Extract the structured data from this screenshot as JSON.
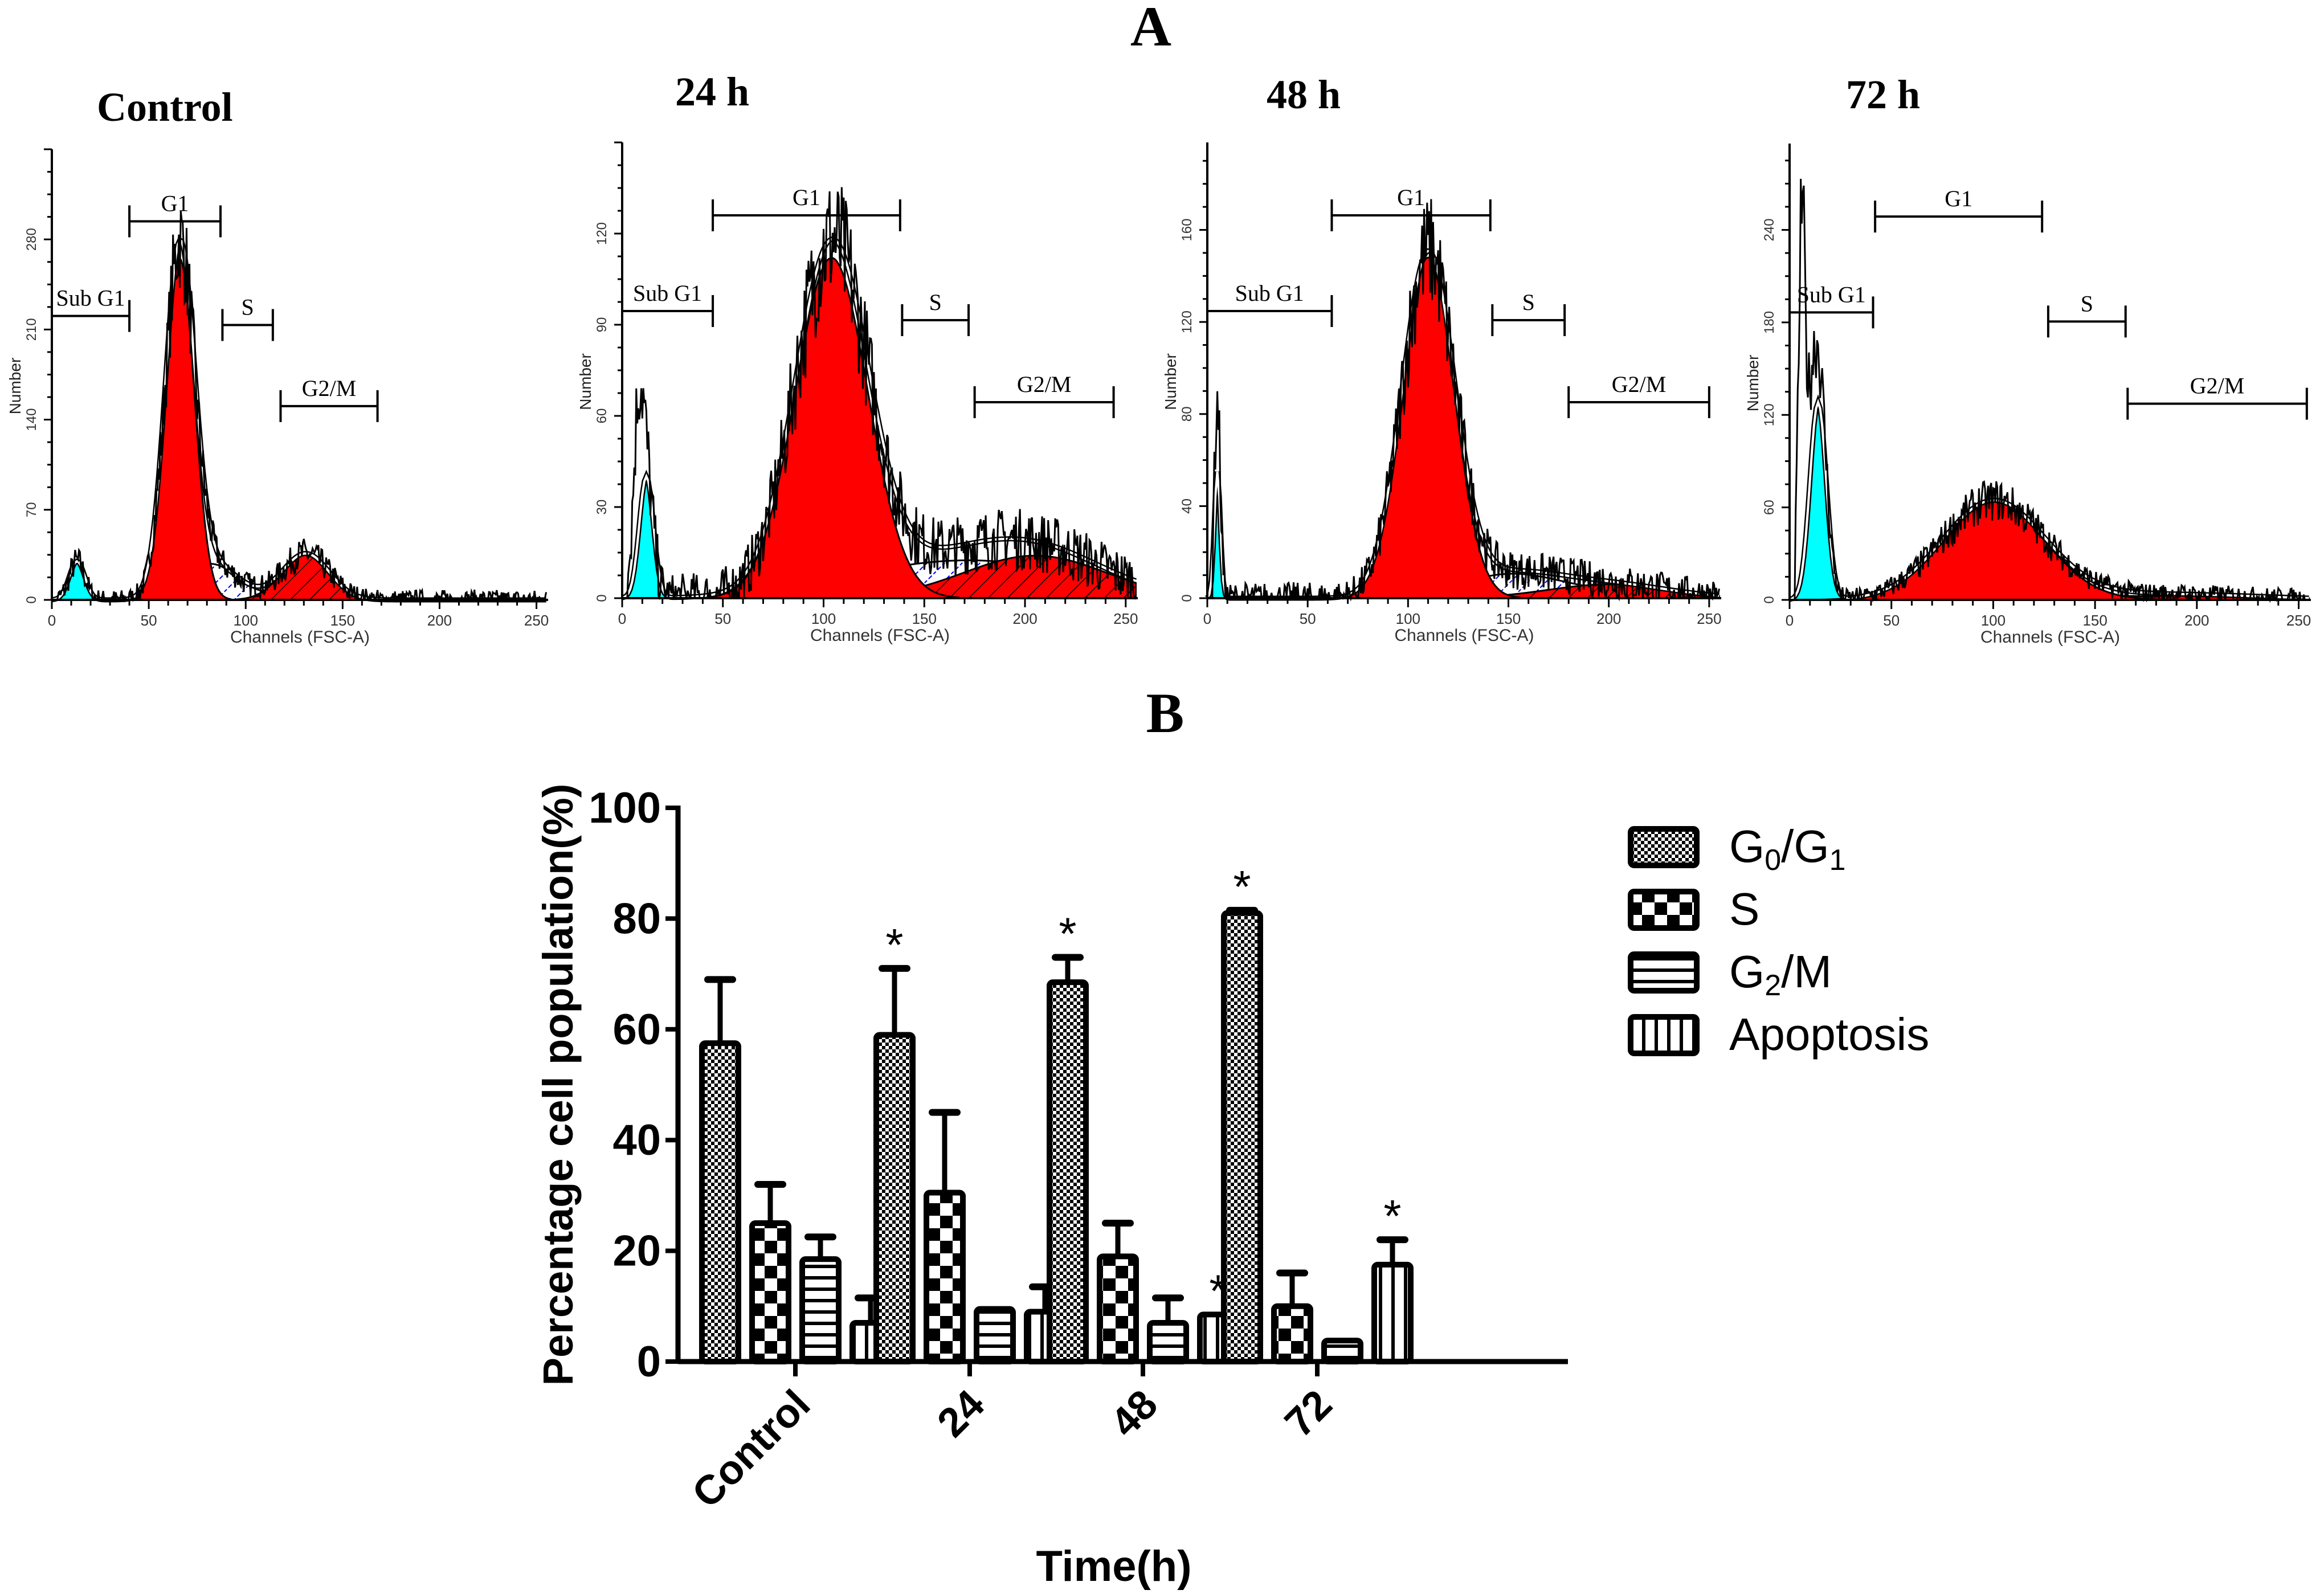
{
  "panel_a_label": "A",
  "panel_b_label": "B",
  "histograms": [
    {
      "title": "Control",
      "y_label": "Number",
      "x_label": "Channels (FSC-A)",
      "y_ticks": [
        0,
        70,
        140,
        210,
        280
      ],
      "y_max": 350,
      "x_ticks": [
        0,
        50,
        100,
        150,
        200,
        250
      ],
      "gates": [
        {
          "label": "Sub G1",
          "range": [
            0,
            40
          ]
        },
        {
          "label": "G1",
          "range": [
            40,
            87
          ]
        },
        {
          "label": "S",
          "range": [
            88,
            114
          ]
        },
        {
          "label": "G2/M",
          "range": [
            118,
            168
          ]
        }
      ]
    },
    {
      "title": "24 h",
      "y_label": "Number",
      "x_label": "Channels (FSC-A)",
      "y_ticks": [
        0,
        30,
        60,
        90,
        120
      ],
      "y_max": 150,
      "x_ticks": [
        0,
        50,
        100,
        150,
        200,
        250
      ],
      "gates": [
        {
          "label": "Sub G1",
          "range": [
            0,
            45
          ]
        },
        {
          "label": "G1",
          "range": [
            45,
            138
          ]
        },
        {
          "label": "S",
          "range": [
            139,
            172
          ]
        },
        {
          "label": "G2/M",
          "range": [
            175,
            244
          ]
        }
      ]
    },
    {
      "title": "48 h",
      "y_label": "Number",
      "x_label": "Channels (FSC-A)",
      "y_ticks": [
        0,
        40,
        80,
        120,
        160
      ],
      "y_max": 198,
      "x_ticks": [
        0,
        50,
        100,
        150,
        200,
        250
      ],
      "gates": [
        {
          "label": "Sub G1",
          "range": [
            0,
            62
          ]
        },
        {
          "label": "G1",
          "range": [
            62,
            141
          ]
        },
        {
          "label": "S",
          "range": [
            142,
            178
          ]
        },
        {
          "label": "G2/M",
          "range": [
            180,
            250
          ]
        }
      ]
    },
    {
      "title": "72 h",
      "y_label": "Number",
      "x_label": "Channels (FSC-A)",
      "y_ticks": [
        0,
        60,
        120,
        180,
        240
      ],
      "y_max": 296,
      "x_ticks": [
        0,
        50,
        100,
        150,
        200,
        250
      ],
      "gates": [
        {
          "label": "Sub G1",
          "range": [
            0,
            41
          ]
        },
        {
          "label": "G1",
          "range": [
            42,
            124
          ]
        },
        {
          "label": "S",
          "range": [
            127,
            165
          ]
        },
        {
          "label": "G2/M",
          "range": [
            166,
            254
          ]
        }
      ]
    }
  ],
  "colors": {
    "sub_g1": "#00ffff",
    "g1": "#ff0000",
    "s_hatch": "#0000ff",
    "axis": "#000000"
  },
  "chart_data": {
    "type": "bar",
    "title": "",
    "xlabel": "Time(h)",
    "ylabel": "Percentage cell population(%)",
    "ylim": [
      0,
      100
    ],
    "y_ticks": [
      0,
      20,
      40,
      60,
      80,
      100
    ],
    "categories": [
      "Control",
      "24",
      "48",
      "72"
    ],
    "legend_position": "right",
    "series": [
      {
        "name": "G0/G1",
        "name_main": "G",
        "sub1": "0",
        "name_mid": "/G",
        "sub2": "1",
        "values": [
          57.5,
          59,
          68.5,
          81
        ],
        "errors": [
          11.5,
          12,
          4.5,
          0.5
        ],
        "significant": [
          false,
          true,
          true,
          true
        ]
      },
      {
        "name": "S",
        "values": [
          25,
          30.5,
          19,
          10
        ],
        "errors": [
          7,
          14.5,
          6,
          6
        ],
        "significant": [
          false,
          false,
          false,
          false
        ]
      },
      {
        "name": "G2/M",
        "name_main": "G",
        "sub1": "2",
        "name_mid": "/M",
        "values": [
          18.5,
          9.5,
          7,
          3.8
        ],
        "errors": [
          4,
          0,
          4.5,
          0
        ],
        "significant": [
          false,
          false,
          false,
          false
        ]
      },
      {
        "name": "Apoptosis",
        "values": [
          7,
          9,
          8.5,
          17.5
        ],
        "errors": [
          4.5,
          4.5,
          0,
          4.5
        ],
        "significant": [
          false,
          false,
          true,
          true
        ]
      }
    ],
    "significance_marker": "*"
  }
}
